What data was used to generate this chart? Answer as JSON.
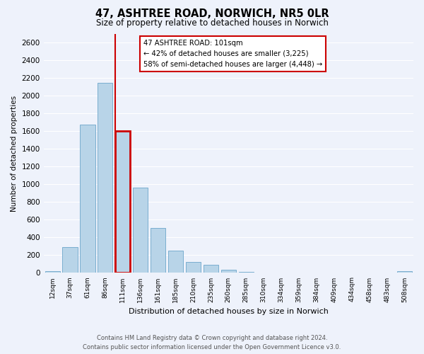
{
  "title": "47, ASHTREE ROAD, NORWICH, NR5 0LR",
  "subtitle": "Size of property relative to detached houses in Norwich",
  "xlabel": "Distribution of detached houses by size in Norwich",
  "ylabel": "Number of detached properties",
  "bar_labels": [
    "12sqm",
    "37sqm",
    "61sqm",
    "86sqm",
    "111sqm",
    "136sqm",
    "161sqm",
    "185sqm",
    "210sqm",
    "235sqm",
    "260sqm",
    "285sqm",
    "310sqm",
    "334sqm",
    "359sqm",
    "384sqm",
    "409sqm",
    "434sqm",
    "458sqm",
    "483sqm",
    "508sqm"
  ],
  "bar_values": [
    20,
    295,
    1670,
    2145,
    1600,
    965,
    505,
    250,
    120,
    95,
    35,
    15,
    5,
    5,
    5,
    5,
    5,
    0,
    0,
    0,
    20
  ],
  "bar_color": "#b8d4e8",
  "bar_edge_color": "#7aaecf",
  "highlight_bar_index": 4,
  "highlight_color": "#cc0000",
  "annotation_title": "47 ASHTREE ROAD: 101sqm",
  "annotation_line1": "← 42% of detached houses are smaller (3,225)",
  "annotation_line2": "58% of semi-detached houses are larger (4,448) →",
  "annotation_box_color": "#ffffff",
  "annotation_box_edge": "#cc0000",
  "ylim": [
    0,
    2700
  ],
  "yticks": [
    0,
    200,
    400,
    600,
    800,
    1000,
    1200,
    1400,
    1600,
    1800,
    2000,
    2200,
    2400,
    2600
  ],
  "footer_line1": "Contains HM Land Registry data © Crown copyright and database right 2024.",
  "footer_line2": "Contains public sector information licensed under the Open Government Licence v3.0.",
  "bg_color": "#eef2fb",
  "plot_bg_color": "#eef2fb"
}
